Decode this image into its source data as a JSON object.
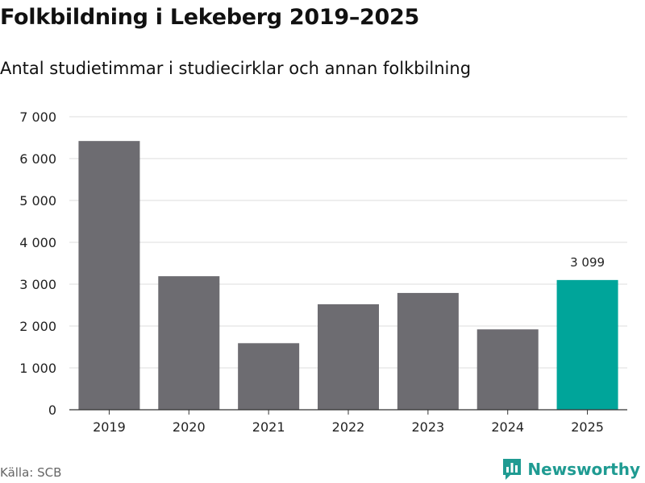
{
  "title": "Folkbildning i Lekeberg 2019–2025",
  "subtitle": "Antal studietimmar i studiecirklar och annan folkbilning",
  "source": "Källa: SCB",
  "brand": {
    "name": "Newsworthy",
    "icon": "bar-chart-logo-icon",
    "color": "#1f9b92"
  },
  "colors": {
    "bar": "#6d6c71",
    "highlight": "#00a59a",
    "grid": "#dddddd",
    "axis": "#333333"
  },
  "chart_data": {
    "type": "bar",
    "title": "Folkbildning i Lekeberg 2019–2025",
    "subtitle": "Antal studietimmar i studiecirklar och annan folkbilning",
    "xlabel": "",
    "ylabel": "",
    "categories": [
      "2019",
      "2020",
      "2021",
      "2022",
      "2023",
      "2024",
      "2025"
    ],
    "values": [
      6420,
      3190,
      1590,
      2520,
      2790,
      1920,
      3099
    ],
    "highlight_index": 6,
    "data_labels": [
      {
        "index": 6,
        "text": "3 099"
      }
    ],
    "ylim": [
      0,
      7000
    ],
    "yticks": [
      0,
      1000,
      2000,
      3000,
      4000,
      5000,
      6000,
      7000
    ],
    "ytick_labels": [
      "0",
      "1 000",
      "2 000",
      "3 000",
      "4 000",
      "5 000",
      "6 000",
      "7 000"
    ],
    "grid": true,
    "legend": "none"
  }
}
